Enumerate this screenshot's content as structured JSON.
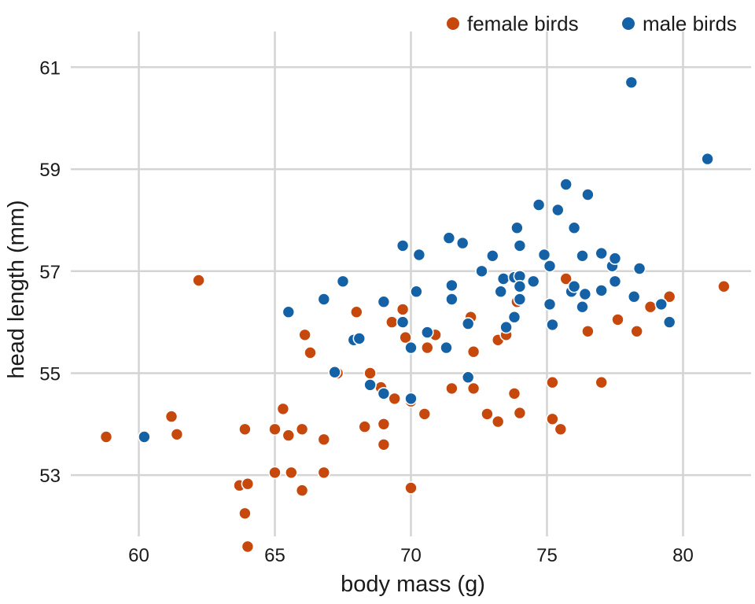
{
  "chart_data": {
    "type": "scatter",
    "title": "",
    "xlabel": "body mass (g)",
    "ylabel": "head length (mm)",
    "xlim": [
      57.5,
      82.5
    ],
    "ylim": [
      51.8,
      61.7
    ],
    "grid": true,
    "legend_position": "top-right",
    "xticks": [
      60,
      65,
      70,
      75,
      80
    ],
    "yticks": [
      53,
      55,
      57,
      59,
      61
    ],
    "series": [
      {
        "name": "female birds",
        "color": "#c6480d",
        "points": [
          [
            58.8,
            53.75
          ],
          [
            61.2,
            54.15
          ],
          [
            61.4,
            53.8
          ],
          [
            62.2,
            56.82
          ],
          [
            63.7,
            52.8
          ],
          [
            63.9,
            53.9
          ],
          [
            63.9,
            52.25
          ],
          [
            64.0,
            52.83
          ],
          [
            64.0,
            51.6
          ],
          [
            65.0,
            53.9
          ],
          [
            65.0,
            53.05
          ],
          [
            65.3,
            54.3
          ],
          [
            65.5,
            53.78
          ],
          [
            65.6,
            53.05
          ],
          [
            66.0,
            53.9
          ],
          [
            66.0,
            52.7
          ],
          [
            66.1,
            55.75
          ],
          [
            66.3,
            55.4
          ],
          [
            66.8,
            53.05
          ],
          [
            66.8,
            53.7
          ],
          [
            67.3,
            55.0
          ],
          [
            67.9,
            55.65
          ],
          [
            68.0,
            56.2
          ],
          [
            68.3,
            53.95
          ],
          [
            68.5,
            55.0
          ],
          [
            68.9,
            54.72
          ],
          [
            69.0,
            54.0
          ],
          [
            69.0,
            53.6
          ],
          [
            69.3,
            56.0
          ],
          [
            69.4,
            54.5
          ],
          [
            69.7,
            56.25
          ],
          [
            69.8,
            55.7
          ],
          [
            70.0,
            54.45
          ],
          [
            70.0,
            52.75
          ],
          [
            70.5,
            54.2
          ],
          [
            70.6,
            55.5
          ],
          [
            70.9,
            55.75
          ],
          [
            71.5,
            54.7
          ],
          [
            72.2,
            56.1
          ],
          [
            72.3,
            55.42
          ],
          [
            72.3,
            54.7
          ],
          [
            72.8,
            54.2
          ],
          [
            73.2,
            55.65
          ],
          [
            73.2,
            54.05
          ],
          [
            73.5,
            55.75
          ],
          [
            73.8,
            54.6
          ],
          [
            73.9,
            56.4
          ],
          [
            74.0,
            54.22
          ],
          [
            75.2,
            54.82
          ],
          [
            75.2,
            54.1
          ],
          [
            75.5,
            53.9
          ],
          [
            75.7,
            56.85
          ],
          [
            76.5,
            55.82
          ],
          [
            77.0,
            54.82
          ],
          [
            77.6,
            56.05
          ],
          [
            78.3,
            55.82
          ],
          [
            78.8,
            56.3
          ],
          [
            79.5,
            56.5
          ],
          [
            81.5,
            56.7
          ]
        ]
      },
      {
        "name": "male birds",
        "color": "#1461a6",
        "points": [
          [
            60.2,
            53.75
          ],
          [
            65.5,
            56.2
          ],
          [
            66.8,
            56.45
          ],
          [
            67.2,
            55.02
          ],
          [
            67.5,
            56.8
          ],
          [
            67.9,
            55.65
          ],
          [
            68.1,
            55.68
          ],
          [
            68.5,
            54.77
          ],
          [
            69.0,
            56.4
          ],
          [
            69.0,
            54.6
          ],
          [
            69.7,
            57.5
          ],
          [
            69.7,
            56.0
          ],
          [
            70.0,
            55.5
          ],
          [
            70.0,
            54.5
          ],
          [
            70.2,
            56.6
          ],
          [
            70.3,
            57.32
          ],
          [
            70.6,
            55.8
          ],
          [
            71.3,
            55.5
          ],
          [
            71.4,
            57.65
          ],
          [
            71.5,
            56.72
          ],
          [
            71.5,
            56.45
          ],
          [
            71.9,
            57.55
          ],
          [
            72.1,
            55.97
          ],
          [
            72.1,
            54.92
          ],
          [
            72.6,
            57.0
          ],
          [
            73.0,
            57.3
          ],
          [
            73.3,
            56.6
          ],
          [
            73.4,
            56.85
          ],
          [
            73.5,
            55.9
          ],
          [
            73.8,
            56.1
          ],
          [
            73.8,
            56.88
          ],
          [
            73.9,
            57.85
          ],
          [
            74.0,
            57.5
          ],
          [
            74.0,
            56.9
          ],
          [
            74.0,
            56.7
          ],
          [
            74.0,
            56.45
          ],
          [
            74.5,
            56.8
          ],
          [
            74.7,
            58.3
          ],
          [
            74.9,
            57.32
          ],
          [
            75.1,
            57.1
          ],
          [
            75.1,
            56.35
          ],
          [
            75.2,
            55.95
          ],
          [
            75.4,
            58.2
          ],
          [
            75.7,
            58.7
          ],
          [
            75.9,
            56.6
          ],
          [
            76.0,
            57.85
          ],
          [
            76.0,
            56.7
          ],
          [
            76.3,
            57.3
          ],
          [
            76.3,
            56.3
          ],
          [
            76.4,
            56.55
          ],
          [
            76.5,
            58.5
          ],
          [
            77.0,
            57.35
          ],
          [
            77.0,
            56.62
          ],
          [
            77.4,
            57.1
          ],
          [
            77.5,
            57.25
          ],
          [
            77.5,
            56.8
          ],
          [
            78.1,
            60.7
          ],
          [
            78.2,
            56.5
          ],
          [
            78.4,
            57.05
          ],
          [
            79.2,
            56.35
          ],
          [
            79.5,
            56.0
          ],
          [
            80.9,
            59.2
          ]
        ]
      }
    ]
  }
}
